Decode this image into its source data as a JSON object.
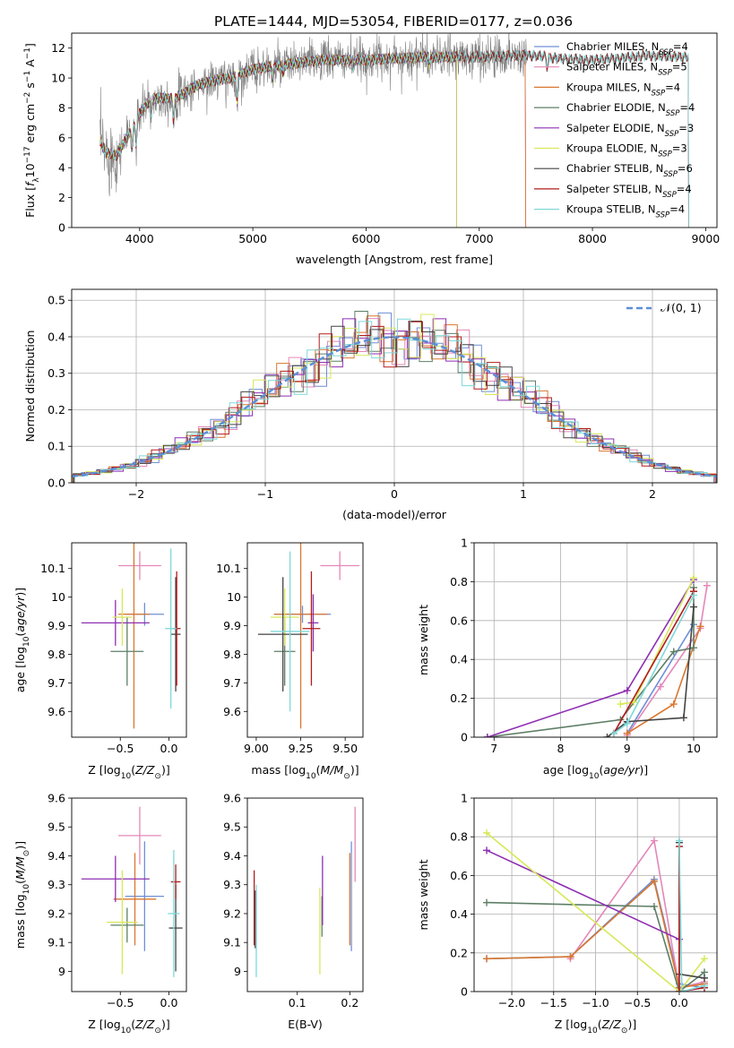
{
  "title": "PLATE=1444, MJD=53054, FIBERID=0177, z=0.036",
  "colors": {
    "Chabrier MILES": "#6f8fd6",
    "Salpeter MILES": "#e487b8",
    "Kroupa MILES": "#d9772f",
    "Chabrier ELODIE": "#5d7f66",
    "Salpeter ELODIE": "#8e2fb2",
    "Kroupa ELODIE": "#d7e85a",
    "Chabrier STELIB": "#444444",
    "Salpeter STELIB": "#b31b1b",
    "Kroupa STELIB": "#7fd8d8",
    "data": "#808080",
    "gauss": "#5b8fd6",
    "grid": "#b0b0b0"
  },
  "chart_data": [
    {
      "id": "spectrum",
      "type": "line",
      "title": "PLATE=1444, MJD=53054, FIBERID=0177, z=0.036",
      "xlabel": "wavelength [Angstrom, rest frame]",
      "ylabel": "Flux [f_λ 10^-17 erg cm^-2 s^-1 A^-1]",
      "xlim": [
        3400,
        9100
      ],
      "ylim": [
        0,
        13
      ],
      "xticks": [
        4000,
        5000,
        6000,
        7000,
        8000,
        9000
      ],
      "yticks": [
        0,
        2,
        4,
        6,
        8,
        10,
        12
      ],
      "grid": false,
      "legend_position": "upper right",
      "legend": [
        {
          "label": "Chabrier MILES, N",
          "sub": "SSP",
          "suffix": "=4",
          "model": "Chabrier MILES"
        },
        {
          "label": "Salpeter MILES, N",
          "sub": "SSP",
          "suffix": "=5",
          "model": "Salpeter MILES"
        },
        {
          "label": "Kroupa MILES, N",
          "sub": "SSP",
          "suffix": "=4",
          "model": "Kroupa MILES"
        },
        {
          "label": "Chabrier ELODIE, N",
          "sub": "SSP",
          "suffix": "=4",
          "model": "Chabrier ELODIE"
        },
        {
          "label": "Salpeter ELODIE, N",
          "sub": "SSP",
          "suffix": "=3",
          "model": "Salpeter ELODIE"
        },
        {
          "label": "Kroupa ELODIE, N",
          "sub": "SSP",
          "suffix": "=3",
          "model": "Kroupa ELODIE"
        },
        {
          "label": "Chabrier STELIB, N",
          "sub": "SSP",
          "suffix": "=6",
          "model": "Chabrier STELIB"
        },
        {
          "label": "Salpeter STELIB, N",
          "sub": "SSP",
          "suffix": "=4",
          "model": "Salpeter STELIB"
        },
        {
          "label": "Kroupa STELIB, N",
          "sub": "SSP",
          "suffix": "=4",
          "model": "Kroupa STELIB"
        }
      ],
      "continuum": [
        [
          3650,
          5.8
        ],
        [
          3700,
          5.0
        ],
        [
          3800,
          4.8
        ],
        [
          3900,
          6.2
        ],
        [
          4000,
          7.6
        ],
        [
          4100,
          8.6
        ],
        [
          4200,
          8.7
        ],
        [
          4300,
          8.6
        ],
        [
          4400,
          9.0
        ],
        [
          4500,
          9.5
        ],
        [
          4600,
          9.7
        ],
        [
          4700,
          9.9
        ],
        [
          4800,
          10.0
        ],
        [
          4900,
          10.3
        ],
        [
          5000,
          10.6
        ],
        [
          5200,
          10.8
        ],
        [
          5400,
          11.0
        ],
        [
          5600,
          11.2
        ],
        [
          5800,
          11.2
        ],
        [
          6000,
          11.2
        ],
        [
          6200,
          11.3
        ],
        [
          6500,
          11.4
        ],
        [
          6800,
          11.4
        ],
        [
          7000,
          11.4
        ],
        [
          7300,
          11.5
        ],
        [
          7500,
          11.5
        ],
        [
          7700,
          11.3
        ],
        [
          8000,
          11.2
        ],
        [
          8200,
          11.3
        ],
        [
          8500,
          11.5
        ],
        [
          8800,
          11.4
        ],
        [
          8850,
          11.5
        ]
      ],
      "dips": [
        [
          3934,
          5.2
        ],
        [
          3969,
          5.3
        ],
        [
          4102,
          7.4
        ],
        [
          4300,
          7.0
        ],
        [
          4861,
          8.2
        ],
        [
          5175,
          9.8
        ],
        [
          5270,
          10.2
        ],
        [
          5890,
          10.6
        ],
        [
          6563,
          10.8
        ],
        [
          7600,
          10.6
        ]
      ],
      "data_range": [
        3650,
        7420
      ],
      "model_ranges": {
        "MILES": [
          3650,
          7410
        ],
        "ELODIE": [
          3650,
          6800
        ],
        "STELIB": [
          3650,
          8850
        ]
      }
    },
    {
      "id": "residuals",
      "type": "histogram",
      "xlabel": "(data-model)/error",
      "ylabel": "Normed distribution",
      "xlim": [
        -2.5,
        2.5
      ],
      "ylim": [
        0,
        0.53
      ],
      "xticks": [
        -2,
        -1,
        0,
        1,
        2
      ],
      "ytick_values": [
        0.0,
        0.1,
        0.2,
        0.3,
        0.4,
        0.5
      ],
      "ytick_labels": [
        "0.0",
        "0.1",
        "0.2",
        "0.3",
        "0.4",
        "0.5"
      ],
      "grid": true,
      "legend_position": "upper right",
      "gauss_label": "𝒩(0, 1)",
      "bin_width": 0.1
    },
    {
      "id": "age-vs-Z",
      "type": "errorbar",
      "xlabel": "Z [log10(Z/Z⊙)]",
      "ylabel": "age  [log10(age/yr)]",
      "xlim": [
        -1.0,
        0.18
      ],
      "ylim": [
        9.51,
        10.19
      ],
      "xticks": [
        -0.5,
        0.0
      ],
      "xtick_labels": [
        "−0.5",
        "0.0"
      ],
      "yticks": [
        9.6,
        9.7,
        9.8,
        9.9,
        10.0,
        10.1
      ],
      "points": [
        {
          "model": "Chabrier MILES",
          "x": -0.25,
          "xerr": 0.2,
          "y": 9.94,
          "yerr": 0.04
        },
        {
          "model": "Salpeter MILES",
          "x": -0.3,
          "xerr": 0.22,
          "y": 10.11,
          "yerr": 0.05
        },
        {
          "model": "Kroupa MILES",
          "x": -0.36,
          "xerr": 0.16,
          "y": 9.94,
          "yerr": 0.4
        },
        {
          "model": "Chabrier ELODIE",
          "x": -0.43,
          "xerr": 0.17,
          "y": 9.81,
          "yerr": 0.12
        },
        {
          "model": "Salpeter ELODIE",
          "x": -0.55,
          "xerr": 0.35,
          "y": 9.91,
          "yerr": 0.08
        },
        {
          "model": "Kroupa ELODIE",
          "x": -0.48,
          "xerr": 0.1,
          "y": 9.93,
          "yerr": 0.1
        },
        {
          "model": "Chabrier STELIB",
          "x": 0.07,
          "xerr": 0.05,
          "y": 9.87,
          "yerr": 0.2
        },
        {
          "model": "Salpeter STELIB",
          "x": 0.08,
          "xerr": 0.04,
          "y": 9.89,
          "yerr": 0.2
        },
        {
          "model": "Kroupa STELIB",
          "x": 0.02,
          "xerr": 0.06,
          "y": 9.89,
          "yerr": 0.28
        }
      ]
    },
    {
      "id": "age-vs-mass",
      "type": "errorbar",
      "xlabel": "mass [log10(M/M⊙)]",
      "ylabel": "",
      "xlim": [
        8.95,
        9.6
      ],
      "ylim": [
        9.51,
        10.19
      ],
      "xticks": [
        9.0,
        9.25,
        9.5
      ],
      "xtick_labels": [
        "9.00",
        "9.25",
        "9.50"
      ],
      "yticks": [
        9.6,
        9.7,
        9.8,
        9.9,
        10.0,
        10.1
      ],
      "points": [
        {
          "model": "Chabrier MILES",
          "x": 9.26,
          "xerr": 0.16,
          "y": 9.94,
          "yerr": 0.03
        },
        {
          "model": "Salpeter MILES",
          "x": 9.47,
          "xerr": 0.11,
          "y": 10.11,
          "yerr": 0.05
        },
        {
          "model": "Kroupa MILES",
          "x": 9.25,
          "xerr": 0.15,
          "y": 9.94,
          "yerr": 0.4
        },
        {
          "model": "Chabrier ELODIE",
          "x": 9.16,
          "xerr": 0.06,
          "y": 9.81,
          "yerr": 0.12
        },
        {
          "model": "Salpeter ELODIE",
          "x": 9.32,
          "xerr": 0.03,
          "y": 9.91,
          "yerr": 0.1
        },
        {
          "model": "Kroupa ELODIE",
          "x": 9.16,
          "xerr": 0.08,
          "y": 9.93,
          "yerr": 0.1
        },
        {
          "model": "Chabrier STELIB",
          "x": 9.15,
          "xerr": 0.14,
          "y": 9.87,
          "yerr": 0.2
        },
        {
          "model": "Salpeter STELIB",
          "x": 9.31,
          "xerr": 0.05,
          "y": 9.89,
          "yerr": 0.2
        },
        {
          "model": "Kroupa STELIB",
          "x": 9.19,
          "xerr": 0.11,
          "y": 9.88,
          "yerr": 0.28
        }
      ]
    },
    {
      "id": "weight-vs-age",
      "type": "line",
      "xlabel": "age  [log10(age/yr)]",
      "ylabel": "mass weight",
      "xlim": [
        6.7,
        10.35
      ],
      "ylim": [
        0,
        1.0
      ],
      "xticks": [
        7,
        8,
        9,
        10
      ],
      "yticks": [
        0.0,
        0.2,
        0.4,
        0.6,
        0.8,
        1.0
      ],
      "series": [
        {
          "model": "Chabrier MILES",
          "points": [
            [
              9.0,
              0.02
            ],
            [
              10.0,
              0.58
            ]
          ]
        },
        {
          "model": "Salpeter MILES",
          "points": [
            [
              9.0,
              0.01
            ],
            [
              9.5,
              0.26
            ],
            [
              10.1,
              0.56
            ],
            [
              10.2,
              0.78
            ]
          ]
        },
        {
          "model": "Kroupa MILES",
          "points": [
            [
              9.0,
              0.02
            ],
            [
              9.7,
              0.17
            ],
            [
              10.1,
              0.57
            ]
          ]
        },
        {
          "model": "Chabrier ELODIE",
          "points": [
            [
              6.9,
              0.0
            ],
            [
              8.9,
              0.09
            ],
            [
              9.7,
              0.44
            ],
            [
              10.0,
              0.46
            ],
            [
              10.0,
              0.77
            ]
          ]
        },
        {
          "model": "Salpeter ELODIE",
          "points": [
            [
              6.9,
              0.0
            ],
            [
              9.0,
              0.24
            ],
            [
              10.0,
              0.81
            ]
          ]
        },
        {
          "model": "Kroupa ELODIE",
          "points": [
            [
              8.9,
              0.17
            ],
            [
              9.1,
              0.18
            ],
            [
              10.0,
              0.82
            ]
          ]
        },
        {
          "model": "Chabrier STELIB",
          "points": [
            [
              8.7,
              0.0
            ],
            [
              9.0,
              0.08
            ],
            [
              9.85,
              0.1
            ],
            [
              10.0,
              0.67
            ]
          ]
        },
        {
          "model": "Salpeter STELIB",
          "points": [
            [
              8.8,
              0.02
            ],
            [
              10.0,
              0.75
            ]
          ]
        },
        {
          "model": "Kroupa STELIB",
          "points": [
            [
              8.8,
              0.02
            ],
            [
              9.0,
              0.07
            ],
            [
              10.0,
              0.73
            ]
          ]
        }
      ]
    },
    {
      "id": "mass-vs-Z",
      "type": "errorbar",
      "xlabel": "Z [log10(Z/Z⊙)]",
      "ylabel": "mass [log10(M/M⊙)]",
      "xlim": [
        -1.0,
        0.18
      ],
      "ylim": [
        8.93,
        9.6
      ],
      "xticks": [
        -0.5,
        0.0
      ],
      "xtick_labels": [
        "−0.5",
        "0.0"
      ],
      "yticks": [
        9.0,
        9.1,
        9.2,
        9.3,
        9.4,
        9.5,
        9.6
      ],
      "points": [
        {
          "model": "Chabrier MILES",
          "x": -0.25,
          "xerr": 0.2,
          "y": 9.26,
          "yerr": 0.19
        },
        {
          "model": "Salpeter MILES",
          "x": -0.3,
          "xerr": 0.22,
          "y": 9.47,
          "yerr": 0.1
        },
        {
          "model": "Kroupa MILES",
          "x": -0.35,
          "xerr": 0.22,
          "y": 9.25,
          "yerr": 0.16
        },
        {
          "model": "Chabrier ELODIE",
          "x": -0.43,
          "xerr": 0.17,
          "y": 9.16,
          "yerr": 0.06
        },
        {
          "model": "Salpeter ELODIE",
          "x": -0.55,
          "xerr": 0.35,
          "y": 9.32,
          "yerr": 0.08
        },
        {
          "model": "Kroupa ELODIE",
          "x": -0.48,
          "xerr": 0.16,
          "y": 9.17,
          "yerr": 0.18
        },
        {
          "model": "Chabrier STELIB",
          "x": 0.07,
          "xerr": 0.07,
          "y": 9.15,
          "yerr": 0.15
        },
        {
          "model": "Salpeter STELIB",
          "x": 0.07,
          "xerr": 0.05,
          "y": 9.31,
          "yerr": 0.06
        },
        {
          "model": "Kroupa STELIB",
          "x": 0.05,
          "xerr": 0.06,
          "y": 9.2,
          "yerr": 0.22
        }
      ]
    },
    {
      "id": "mass-vs-ebv",
      "type": "errorbar",
      "xlabel": "E(B-V)",
      "ylabel": "",
      "xlim": [
        0.005,
        0.225
      ],
      "ylim": [
        8.93,
        9.6
      ],
      "xticks": [
        0.1,
        0.2
      ],
      "xtick_labels": [
        "0.1",
        "0.2"
      ],
      "yticks": [
        9.0,
        9.1,
        9.2,
        9.3,
        9.4,
        9.5,
        9.6
      ],
      "points": [
        {
          "model": "Chabrier MILES",
          "x": 0.203,
          "xerr": 0.0,
          "y": 9.26,
          "yerr": 0.19
        },
        {
          "model": "Salpeter MILES",
          "x": 0.21,
          "xerr": 0.0,
          "y": 9.44,
          "yerr": 0.13
        },
        {
          "model": "Kroupa MILES",
          "x": 0.2,
          "xerr": 0.0,
          "y": 9.25,
          "yerr": 0.16
        },
        {
          "model": "Chabrier ELODIE",
          "x": 0.147,
          "xerr": 0.0,
          "y": 9.19,
          "yerr": 0.07
        },
        {
          "model": "Salpeter ELODIE",
          "x": 0.148,
          "xerr": 0.0,
          "y": 9.28,
          "yerr": 0.12
        },
        {
          "model": "Kroupa ELODIE",
          "x": 0.143,
          "xerr": 0.0,
          "y": 9.14,
          "yerr": 0.15
        },
        {
          "model": "Chabrier STELIB",
          "x": 0.02,
          "xerr": 0.0,
          "y": 9.18,
          "yerr": 0.1
        },
        {
          "model": "Salpeter STELIB",
          "x": 0.018,
          "xerr": 0.0,
          "y": 9.22,
          "yerr": 0.13
        },
        {
          "model": "Kroupa STELIB",
          "x": 0.022,
          "xerr": 0.0,
          "y": 9.14,
          "yerr": 0.16
        }
      ]
    },
    {
      "id": "weight-vs-Z",
      "type": "line",
      "xlabel": "Z [log10(Z/Z⊙)]",
      "ylabel": "mass weight",
      "xlim": [
        -2.45,
        0.45
      ],
      "ylim": [
        0,
        1.0
      ],
      "xticks": [
        -2.0,
        -1.5,
        -1.0,
        -0.5,
        0.0
      ],
      "xtick_labels": [
        "−2.0",
        "−1.5",
        "−1.0",
        "−0.5",
        "0.0"
      ],
      "yticks": [
        0.0,
        0.2,
        0.4,
        0.6,
        0.8,
        1.0
      ],
      "series": [
        {
          "model": "Chabrier MILES",
          "points": [
            [
              -2.3,
              0.17
            ],
            [
              -1.3,
              0.18
            ],
            [
              -0.3,
              0.58
            ],
            [
              0.0,
              0.04
            ],
            [
              0.3,
              0.02
            ]
          ]
        },
        {
          "model": "Salpeter MILES",
          "points": [
            [
              -1.3,
              0.17
            ],
            [
              -0.3,
              0.78
            ],
            [
              0.0,
              0.02
            ],
            [
              0.3,
              0.05
            ]
          ]
        },
        {
          "model": "Kroupa MILES",
          "points": [
            [
              -2.3,
              0.17
            ],
            [
              -1.3,
              0.18
            ],
            [
              -0.3,
              0.57
            ],
            [
              0.0,
              0.02
            ],
            [
              0.3,
              0.04
            ]
          ]
        },
        {
          "model": "Chabrier ELODIE",
          "points": [
            [
              -2.3,
              0.46
            ],
            [
              -0.3,
              0.44
            ],
            [
              0.0,
              0.0
            ],
            [
              0.3,
              0.1
            ]
          ]
        },
        {
          "model": "Salpeter ELODIE",
          "points": [
            [
              -2.3,
              0.73
            ],
            [
              0.0,
              0.27
            ]
          ]
        },
        {
          "model": "Kroupa ELODIE",
          "points": [
            [
              -2.3,
              0.82
            ],
            [
              0.0,
              0.0
            ],
            [
              0.3,
              0.17
            ]
          ]
        },
        {
          "model": "Chabrier STELIB",
          "points": [
            [
              0.0,
              0.77
            ],
            [
              0.0,
              0.09
            ],
            [
              0.3,
              0.07
            ]
          ]
        },
        {
          "model": "Salpeter STELIB",
          "points": [
            [
              0.0,
              0.75
            ],
            [
              0.0,
              0.0
            ],
            [
              0.3,
              0.02
            ]
          ]
        },
        {
          "model": "Kroupa STELIB",
          "points": [
            [
              0.0,
              0.78
            ],
            [
              0.03,
              0.0
            ],
            [
              0.3,
              0.03
            ]
          ]
        }
      ]
    }
  ]
}
